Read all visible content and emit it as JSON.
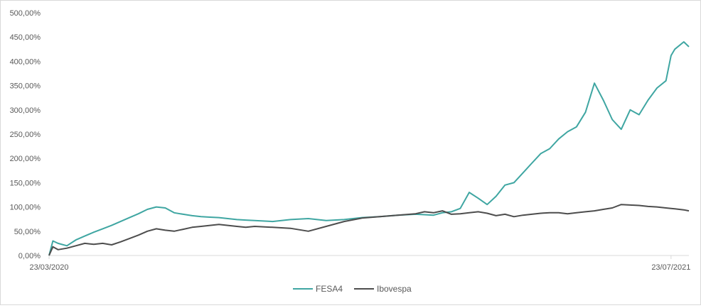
{
  "chart_data": {
    "type": "line",
    "title": "",
    "xlabel": "",
    "ylabel": "",
    "y_unit": "%",
    "ylim": [
      0,
      500
    ],
    "yticks": [
      0,
      50,
      100,
      150,
      200,
      250,
      300,
      350,
      400,
      450,
      500
    ],
    "ytick_labels": [
      "0,00%",
      "50,00%",
      "100,00%",
      "150,00%",
      "200,00%",
      "250,00%",
      "300,00%",
      "350,00%",
      "400,00%",
      "450,00%",
      "500,00%"
    ],
    "xlim": [
      "2020-03-23",
      "2021-08-06"
    ],
    "xtick_labels": [
      "23/03/2020",
      "23/07/2021"
    ],
    "grid": false,
    "legend_position": "bottom",
    "series": [
      {
        "name": "FESA4",
        "color": "#3fa6a2",
        "x": [
          "2020-03-23",
          "2020-03-26",
          "2020-03-30",
          "2020-04-06",
          "2020-04-13",
          "2020-04-20",
          "2020-04-27",
          "2020-05-04",
          "2020-05-11",
          "2020-05-18",
          "2020-05-25",
          "2020-06-01",
          "2020-06-08",
          "2020-06-15",
          "2020-06-22",
          "2020-06-29",
          "2020-07-06",
          "2020-07-13",
          "2020-07-20",
          "2020-07-27",
          "2020-08-03",
          "2020-08-10",
          "2020-08-17",
          "2020-08-24",
          "2020-08-31",
          "2020-09-14",
          "2020-09-28",
          "2020-10-12",
          "2020-10-26",
          "2020-11-09",
          "2020-11-23",
          "2020-12-07",
          "2020-12-21",
          "2021-01-04",
          "2021-01-11",
          "2021-01-18",
          "2021-01-25",
          "2021-02-01",
          "2021-02-08",
          "2021-02-15",
          "2021-02-22",
          "2021-03-01",
          "2021-03-08",
          "2021-03-15",
          "2021-03-22",
          "2021-03-29",
          "2021-04-05",
          "2021-04-12",
          "2021-04-19",
          "2021-04-26",
          "2021-05-03",
          "2021-05-10",
          "2021-05-17",
          "2021-05-24",
          "2021-05-31",
          "2021-06-07",
          "2021-06-14",
          "2021-06-21",
          "2021-06-28",
          "2021-07-05",
          "2021-07-12",
          "2021-07-19",
          "2021-07-23",
          "2021-07-26",
          "2021-08-02",
          "2021-08-06"
        ],
        "y": [
          0,
          30,
          25,
          20,
          32,
          40,
          48,
          55,
          62,
          70,
          78,
          86,
          95,
          100,
          98,
          88,
          85,
          82,
          80,
          79,
          78,
          76,
          74,
          73,
          72,
          70,
          74,
          76,
          72,
          74,
          78,
          80,
          83,
          85,
          84,
          83,
          88,
          90,
          97,
          130,
          118,
          105,
          122,
          145,
          150,
          170,
          190,
          210,
          220,
          240,
          255,
          265,
          295,
          355,
          320,
          280,
          260,
          300,
          290,
          320,
          345,
          360,
          412,
          425,
          440,
          430
        ]
      },
      {
        "name": "Ibovespa",
        "color": "#4d4d4d",
        "x": [
          "2020-03-23",
          "2020-03-26",
          "2020-03-30",
          "2020-04-06",
          "2020-04-13",
          "2020-04-20",
          "2020-04-27",
          "2020-05-04",
          "2020-05-11",
          "2020-05-18",
          "2020-05-25",
          "2020-06-01",
          "2020-06-08",
          "2020-06-15",
          "2020-06-22",
          "2020-06-29",
          "2020-07-06",
          "2020-07-13",
          "2020-07-20",
          "2020-07-27",
          "2020-08-03",
          "2020-08-10",
          "2020-08-17",
          "2020-08-24",
          "2020-08-31",
          "2020-09-14",
          "2020-09-28",
          "2020-10-12",
          "2020-10-26",
          "2020-11-09",
          "2020-11-23",
          "2020-12-07",
          "2020-12-21",
          "2021-01-04",
          "2021-01-11",
          "2021-01-18",
          "2021-01-25",
          "2021-02-01",
          "2021-02-08",
          "2021-02-15",
          "2021-02-22",
          "2021-03-01",
          "2021-03-08",
          "2021-03-15",
          "2021-03-22",
          "2021-03-29",
          "2021-04-05",
          "2021-04-12",
          "2021-04-19",
          "2021-04-26",
          "2021-05-03",
          "2021-05-10",
          "2021-05-17",
          "2021-05-24",
          "2021-05-31",
          "2021-06-07",
          "2021-06-14",
          "2021-06-21",
          "2021-06-28",
          "2021-07-05",
          "2021-07-12",
          "2021-07-19",
          "2021-07-23",
          "2021-07-26",
          "2021-08-02",
          "2021-08-06"
        ],
        "y": [
          0,
          18,
          12,
          15,
          20,
          25,
          23,
          25,
          22,
          28,
          35,
          42,
          50,
          55,
          52,
          50,
          54,
          58,
          60,
          62,
          64,
          62,
          60,
          58,
          60,
          58,
          56,
          50,
          60,
          70,
          77,
          80,
          83,
          86,
          90,
          88,
          92,
          85,
          86,
          88,
          90,
          87,
          82,
          85,
          80,
          83,
          85,
          87,
          88,
          88,
          86,
          88,
          90,
          92,
          95,
          98,
          105,
          104,
          103,
          101,
          100,
          98,
          97,
          96,
          94,
          92
        ]
      }
    ]
  }
}
